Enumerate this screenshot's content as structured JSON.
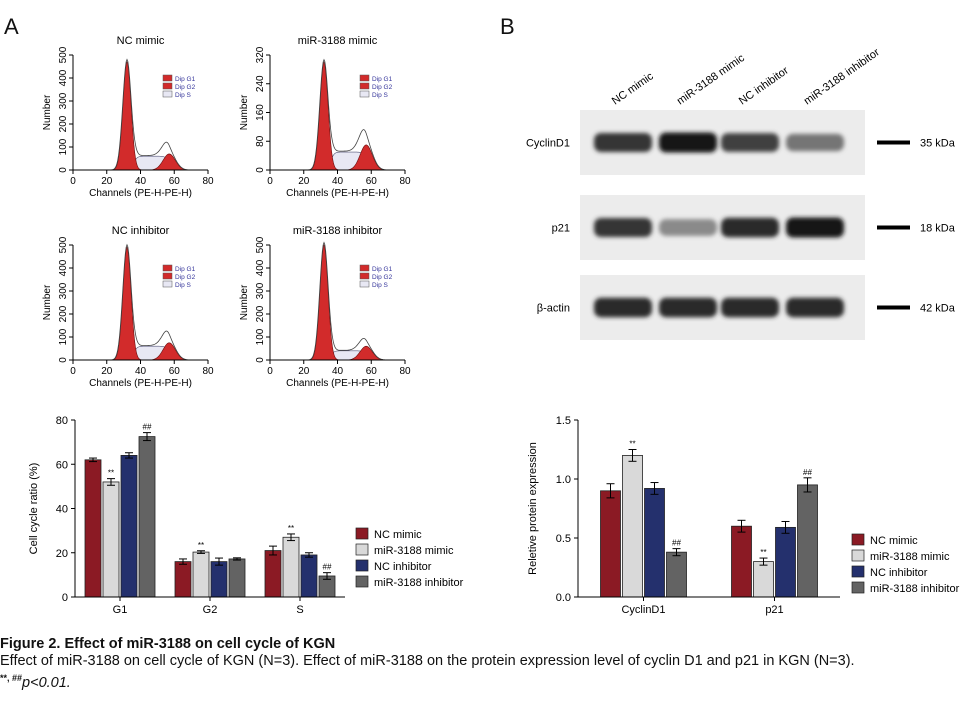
{
  "panels": {
    "a": "A",
    "b": "B"
  },
  "flow": {
    "ylabel": "Number",
    "xlabel": "Channels (PE-H-PE-H)",
    "legend": [
      "Dip G1",
      "Dip G2",
      "Dip S"
    ],
    "xticks": [
      "0",
      "20",
      "40",
      "60",
      "80"
    ],
    "plots": [
      {
        "title": "NC mimic",
        "yticks": [
          "0",
          "100",
          "200",
          "300",
          "400",
          "500"
        ],
        "ymax": 500,
        "g1": 470,
        "g2": 70,
        "s": 60
      },
      {
        "title": "miR-3188 mimic",
        "yticks": [
          "0",
          "80",
          "160",
          "240",
          "320"
        ],
        "ymax": 320,
        "g1": 300,
        "g2": 70,
        "s": 50
      },
      {
        "title": "NC inhibitor",
        "yticks": [
          "0",
          "100",
          "200",
          "300",
          "400",
          "500"
        ],
        "ymax": 500,
        "g1": 490,
        "g2": 75,
        "s": 60
      },
      {
        "title": "miR-3188 inhibitor",
        "yticks": [
          "0",
          "100",
          "200",
          "300",
          "400",
          "500"
        ],
        "ymax": 500,
        "g1": 500,
        "g2": 60,
        "s": 40
      }
    ]
  },
  "western": {
    "lanes": [
      "NC mimic",
      "miR-3188 mimic",
      "NC inhibitor",
      "miR-3188 inhibitor"
    ],
    "rows": [
      {
        "label": "CyclinD1",
        "kda": "35 kDa",
        "intensity": [
          0.85,
          1.0,
          0.8,
          0.55
        ]
      },
      {
        "label": "p21",
        "kda": "18 kDa",
        "intensity": [
          0.85,
          0.45,
          0.9,
          1.0
        ]
      },
      {
        "label": "β-actin",
        "kda": "42 kDa",
        "intensity": [
          0.9,
          0.9,
          0.9,
          0.9
        ]
      }
    ]
  },
  "chart_data": [
    {
      "type": "bar",
      "title": "",
      "xlabel": "",
      "ylabel": "Cell cycle ratio (%)",
      "categories": [
        "G1",
        "G2",
        "S"
      ],
      "ylim": [
        0,
        80
      ],
      "yticks": [
        "0",
        "20",
        "40",
        "60",
        "80"
      ],
      "legend_position": "right",
      "series": [
        {
          "name": "NC mimic",
          "values": [
            62,
            16,
            21
          ],
          "errors": [
            0.8,
            1.2,
            2
          ],
          "annotations": [
            "",
            "",
            ""
          ]
        },
        {
          "name": "miR-3188 mimic",
          "values": [
            52,
            20.3,
            27
          ],
          "errors": [
            1.5,
            0.6,
            1.5
          ],
          "annotations": [
            "**",
            "**",
            "**"
          ]
        },
        {
          "name": "NC inhibitor",
          "values": [
            64,
            16,
            19
          ],
          "errors": [
            1.2,
            1.6,
            1
          ],
          "annotations": [
            "",
            "",
            ""
          ]
        },
        {
          "name": "miR-3188 inhibitor",
          "values": [
            72.5,
            17.2,
            9.5
          ],
          "errors": [
            1.8,
            0.5,
            1.5
          ],
          "annotations": [
            "##",
            "",
            "##"
          ]
        }
      ]
    },
    {
      "type": "bar",
      "title": "",
      "xlabel": "",
      "ylabel": "Reletive protein expression",
      "categories": [
        "CyclinD1",
        "p21"
      ],
      "ylim": [
        0,
        1.5
      ],
      "yticks": [
        "0.0",
        "0.5",
        "1.0",
        "1.5"
      ],
      "legend_position": "right",
      "series": [
        {
          "name": "NC mimic",
          "values": [
            0.9,
            0.6
          ],
          "errors": [
            0.06,
            0.05
          ],
          "annotations": [
            "",
            ""
          ]
        },
        {
          "name": "miR-3188 mimic",
          "values": [
            1.2,
            0.3
          ],
          "errors": [
            0.05,
            0.03
          ],
          "annotations": [
            "**",
            "**"
          ]
        },
        {
          "name": "NC inhibitor",
          "values": [
            0.92,
            0.59
          ],
          "errors": [
            0.05,
            0.05
          ],
          "annotations": [
            "",
            ""
          ]
        },
        {
          "name": "miR-3188 inhibitor",
          "values": [
            0.38,
            0.95
          ],
          "errors": [
            0.03,
            0.06
          ],
          "annotations": [
            "##",
            "##"
          ]
        }
      ]
    }
  ],
  "colors": {
    "nc_mimic": "#8b1a24",
    "mir_mimic": "#d9d9d9",
    "nc_inhibitor": "#24306d",
    "mir_inhibitor": "#636363",
    "flow_red": "#d22b2b"
  },
  "caption": {
    "title": "Figure 2. Effect of miR-3188 on cell cycle of KGN",
    "body": "Effect of miR-3188 on cell cycle of KGN (N=3). Effect of miR-3188 on the protein expression level of cyclin D1 and p21 in KGN (N=3).",
    "sig_marks": "**, ##",
    "p_value": "p<0.01."
  }
}
